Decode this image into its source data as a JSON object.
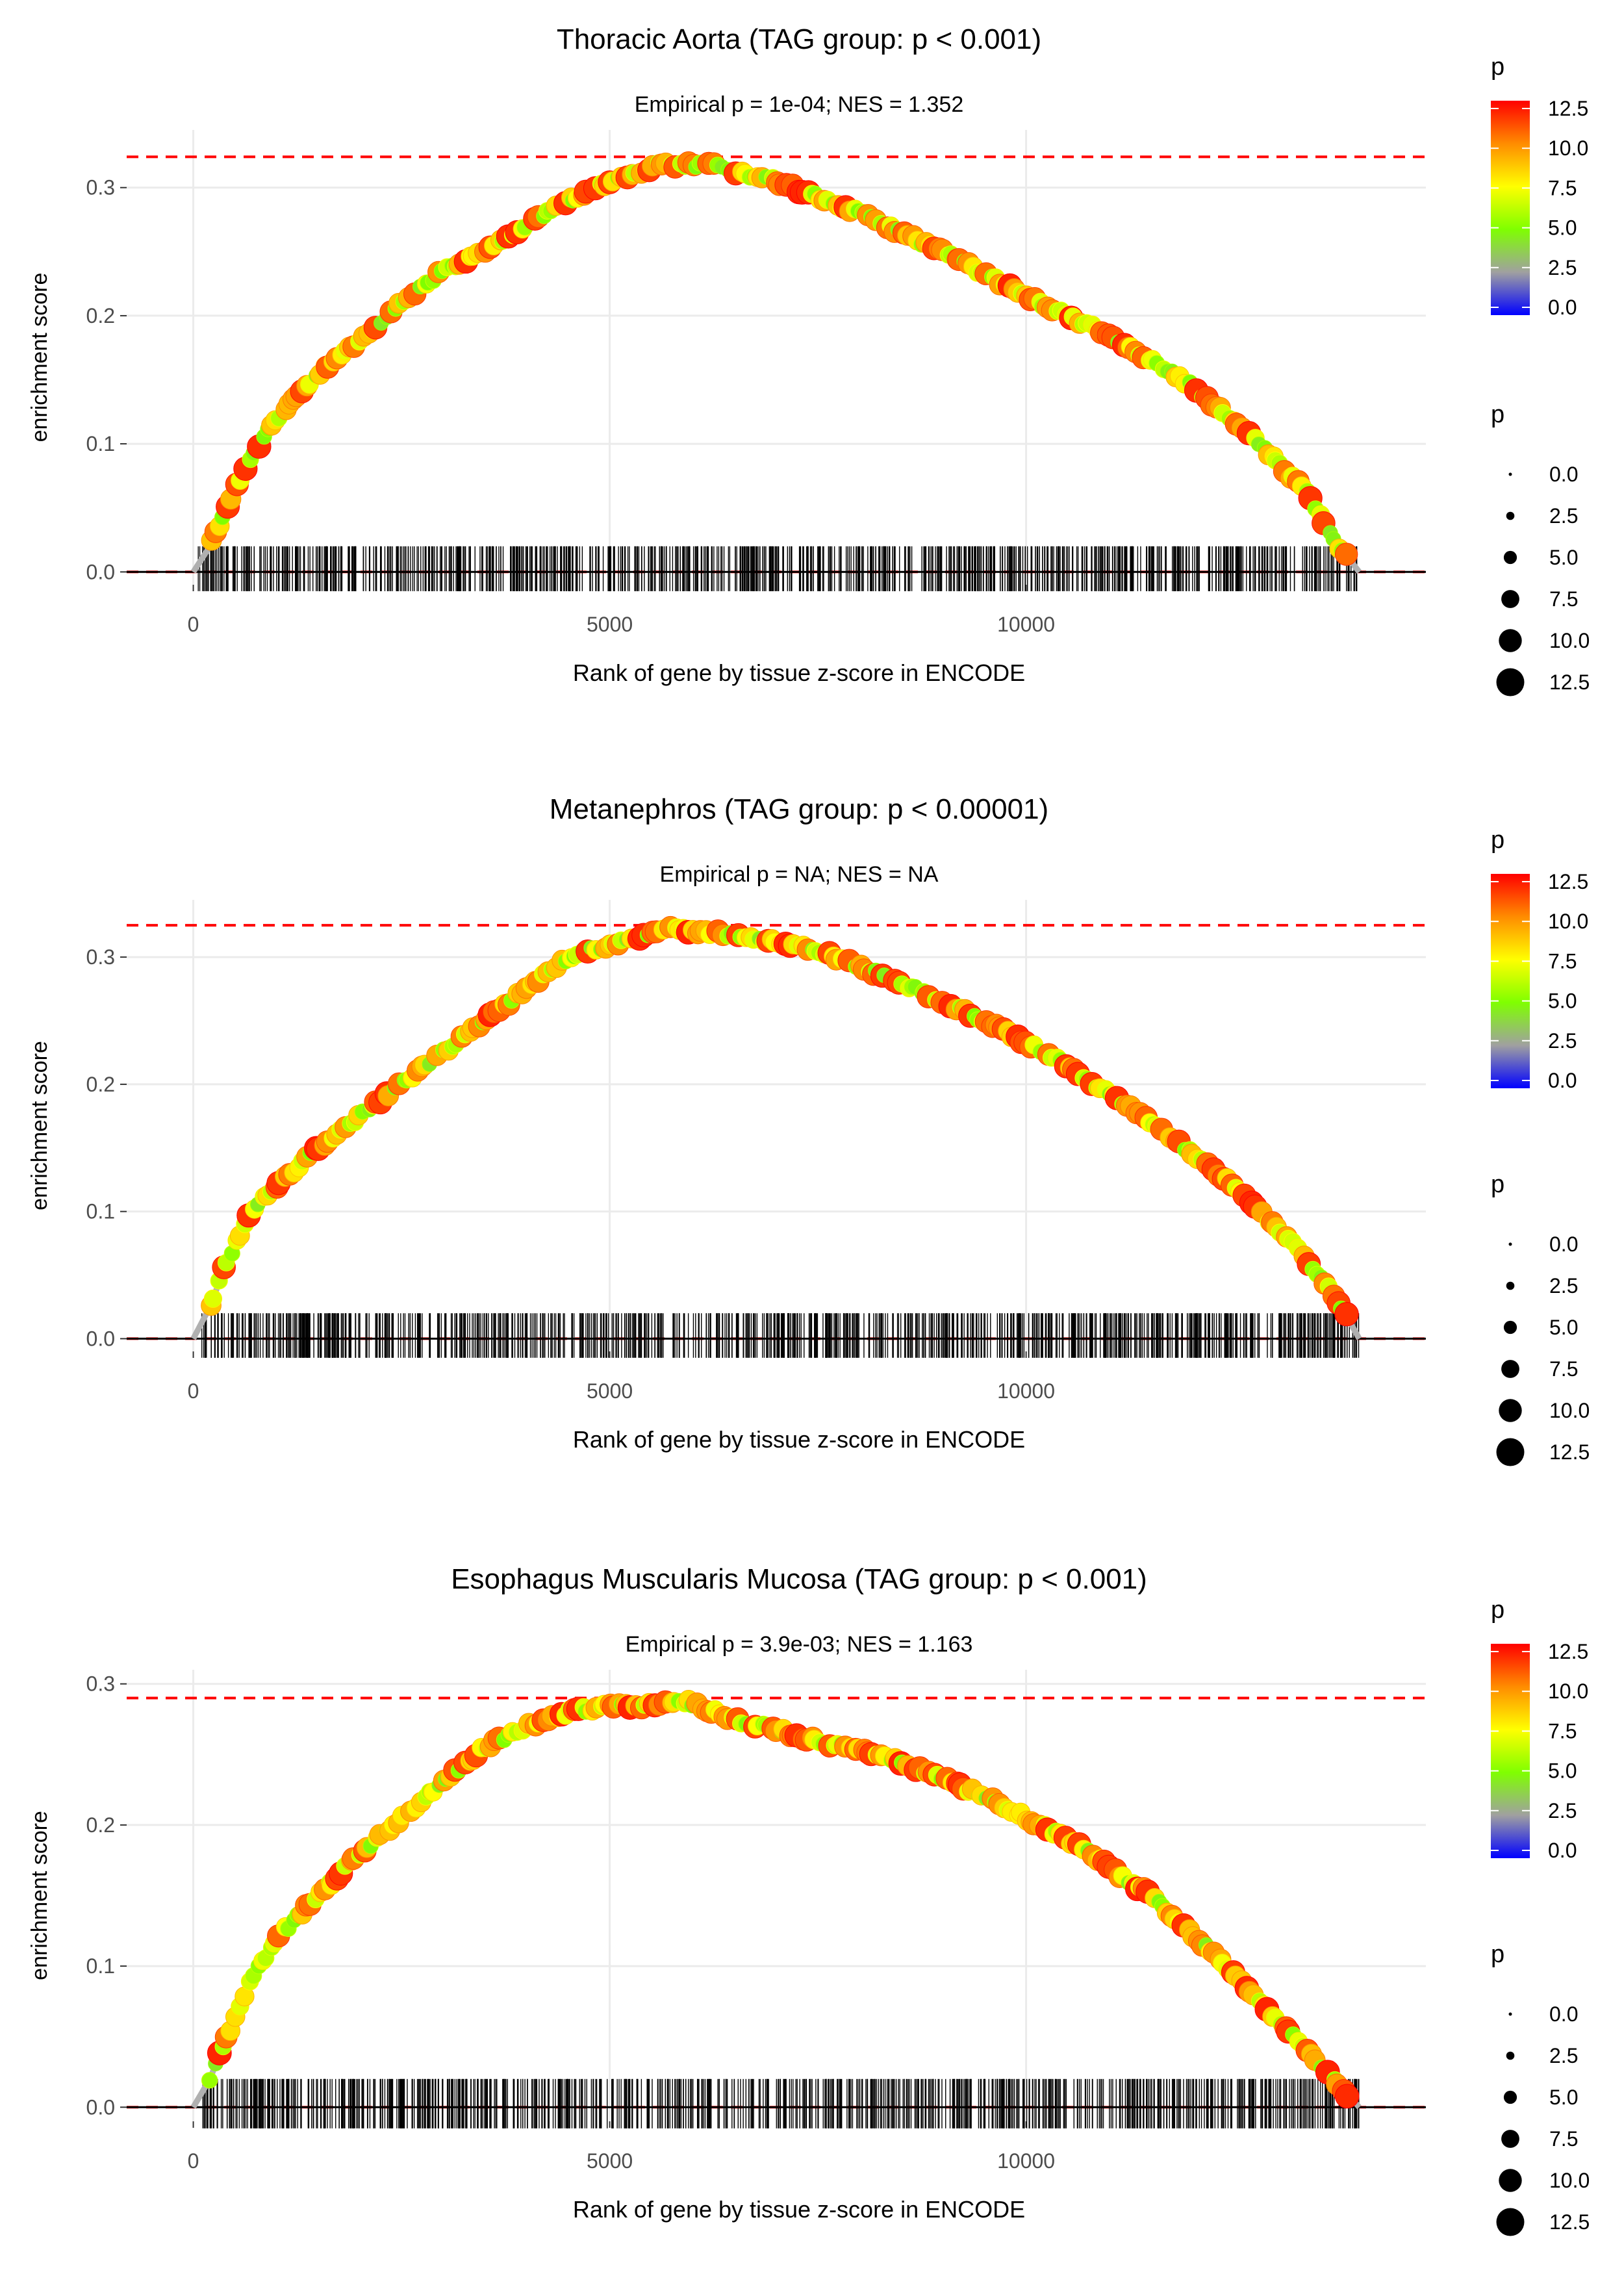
{
  "colorbar": {
    "title": "p",
    "ticks": [
      "12.5",
      "10.0",
      "7.5",
      "5.0",
      "2.5",
      "0.0"
    ],
    "colors": [
      "#ff0000",
      "#ff8c00",
      "#ffff00",
      "#7fff00",
      "#a0a0a0",
      "#0000ff"
    ]
  },
  "sizelegend": {
    "title": "p",
    "labels": [
      "0.0",
      "2.5",
      "5.0",
      "7.5",
      "10.0",
      "12.5"
    ]
  },
  "chart_data": [
    {
      "type": "line",
      "title": "Thoracic Aorta (TAG group: p < 0.001)",
      "subtitle": "Empirical p = 1e-04; NES = 1.352",
      "xlabel": "Rank of gene by tissue z-score in ENCODE",
      "ylabel": "enrichment score",
      "xlim": [
        -800,
        14800
      ],
      "ylim": [
        -0.01,
        0.345
      ],
      "xticks": [
        0,
        5000,
        10000
      ],
      "xtick_labels": [
        "0",
        "5000",
        "10000"
      ],
      "yticks": [
        0.0,
        0.1,
        0.2,
        0.3
      ],
      "ytick_labels": [
        "0.0",
        "0.1",
        "0.2",
        "0.3"
      ],
      "max_es_dashed": 0.324,
      "curve_x": [
        0,
        200,
        400,
        700,
        1000,
        1500,
        2000,
        2500,
        3000,
        3500,
        4000,
        4500,
        5000,
        5600,
        6200,
        7000,
        8000,
        9000,
        10000,
        11000,
        12000,
        12800,
        13400,
        13700,
        14000
      ],
      "curve_y": [
        0.0,
        0.02,
        0.05,
        0.09,
        0.12,
        0.155,
        0.18,
        0.21,
        0.235,
        0.25,
        0.27,
        0.29,
        0.305,
        0.318,
        0.318,
        0.305,
        0.28,
        0.25,
        0.215,
        0.185,
        0.145,
        0.1,
        0.06,
        0.025,
        0.0
      ],
      "rug_xrange": [
        50,
        14000
      ]
    },
    {
      "type": "line",
      "title": "Metanephros (TAG group: p < 0.00001)",
      "subtitle": "Empirical p = NA; NES = NA",
      "xlabel": "Rank of gene by tissue z-score in ENCODE",
      "ylabel": "enrichment score",
      "xlim": [
        -800,
        14800
      ],
      "ylim": [
        -0.01,
        0.345
      ],
      "xticks": [
        0,
        5000,
        10000
      ],
      "xtick_labels": [
        "0",
        "5000",
        "10000"
      ],
      "yticks": [
        0.0,
        0.1,
        0.2,
        0.3
      ],
      "ytick_labels": [
        "0.0",
        "0.1",
        "0.2",
        "0.3"
      ],
      "max_es_dashed": 0.325,
      "curve_x": [
        0,
        200,
        400,
        700,
        1000,
        1500,
        2000,
        2500,
        3000,
        3500,
        4000,
        4500,
        5000,
        5700,
        6500,
        7500,
        8500,
        9500,
        10500,
        11500,
        12500,
        13200,
        13700,
        14000
      ],
      "curve_y": [
        0.0,
        0.025,
        0.06,
        0.1,
        0.12,
        0.15,
        0.175,
        0.2,
        0.225,
        0.25,
        0.275,
        0.3,
        0.31,
        0.322,
        0.318,
        0.305,
        0.28,
        0.25,
        0.215,
        0.17,
        0.12,
        0.075,
        0.035,
        0.0
      ],
      "rug_xrange": [
        100,
        14000
      ]
    },
    {
      "type": "line",
      "title": "Esophagus Muscularis Mucosa (TAG group: p < 0.001)",
      "subtitle": "Empirical p = 3.9e-03; NES = 1.163",
      "xlabel": "Rank of gene by tissue z-score in ENCODE",
      "ylabel": "enrichment score",
      "xlim": [
        -800,
        14800
      ],
      "ylim": [
        -0.01,
        0.31
      ],
      "xticks": [
        0,
        5000,
        10000
      ],
      "xtick_labels": [
        "0",
        "5000",
        "10000"
      ],
      "yticks": [
        0.0,
        0.1,
        0.2,
        0.3
      ],
      "ytick_labels": [
        "0.0",
        "0.1",
        "0.2",
        "0.3"
      ],
      "max_es_dashed": 0.29,
      "curve_x": [
        0,
        200,
        400,
        700,
        1000,
        1500,
        2000,
        2500,
        3000,
        3500,
        4000,
        4500,
        5000,
        5500,
        5900,
        6500,
        7500,
        8500,
        9500,
        10500,
        11500,
        12500,
        13200,
        13700,
        14000
      ],
      "curve_y": [
        0.0,
        0.02,
        0.05,
        0.09,
        0.12,
        0.15,
        0.18,
        0.205,
        0.23,
        0.255,
        0.27,
        0.28,
        0.285,
        0.285,
        0.288,
        0.275,
        0.26,
        0.245,
        0.22,
        0.19,
        0.15,
        0.095,
        0.05,
        0.02,
        0.0
      ],
      "rug_xrange": [
        100,
        14000
      ]
    }
  ]
}
